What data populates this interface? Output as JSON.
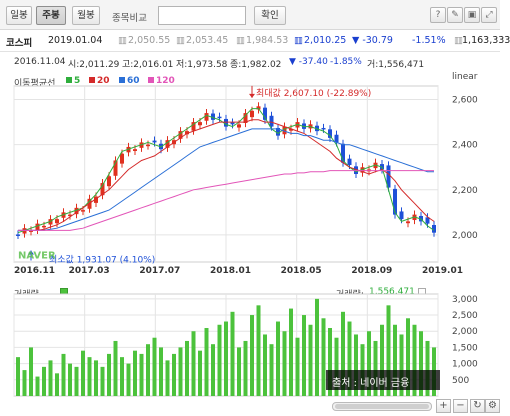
{
  "toolbar": {
    "period_buttons": [
      {
        "label": "일봉",
        "active": false
      },
      {
        "label": "주봉",
        "active": true
      },
      {
        "label": "월봉",
        "active": false
      }
    ],
    "compare_label": "종목비교",
    "compare_input_value": "",
    "confirm_label": "확인"
  },
  "quote": {
    "name": "코스피",
    "date": "2019.01.04",
    "open": "2,050.55",
    "high": "2,053.45",
    "low": "1,984.53",
    "close": "2,010.25",
    "change": "▼ -30.79",
    "change_pct": "-1.51%",
    "volume": "1,163,333"
  },
  "ohlc_header": {
    "start_date": "2016.11.04",
    "open": "시:2,011.29",
    "high": "고:2,016.01",
    "low": "저:1,973.58",
    "close": "종:1,982.02",
    "change": "▼ -37.40",
    "change_pct": "-1.85%",
    "volume": "거:1,556,471"
  },
  "scale_label": "linear",
  "ma_legend": {
    "title": "이동평균선",
    "items": [
      {
        "label": "5",
        "color": "#2fae3c"
      },
      {
        "label": "20",
        "color": "#d42a2a"
      },
      {
        "label": "60",
        "color": "#2a6fd6"
      },
      {
        "label": "120",
        "color": "#e255b8"
      }
    ]
  },
  "colors": {
    "up": "#e0301e",
    "down": "#1e50d8",
    "volume": "#4cc23c",
    "grid": "#e4e4e4"
  },
  "annotations": {
    "max_label": "최대값 2,607.10 (-22.89%)",
    "min_label": "최소값 1,931.07 (4.10%)"
  },
  "watermark": "NAVER",
  "volume_panel": {
    "title": "거래량",
    "current_label": "거래량:",
    "current_value": "1,556,471",
    "source": "출처 : 네이버 금융"
  },
  "controls": {
    "zoom_in": "+",
    "zoom_out": "−",
    "reset": "↻",
    "options": "⚙"
  },
  "chart_data": {
    "type": "line",
    "title": "",
    "xlabel": "",
    "ylabel": "",
    "x_ticks": [
      "2016.11",
      "2017.03",
      "2017.07",
      "2018.01",
      "2018.05",
      "2018.09",
      "2019.01"
    ],
    "price_ylim": [
      1880,
      2660
    ],
    "price_ticks": [
      "2,600",
      "2,400",
      "2,200",
      "2,000"
    ],
    "price_tick_values": [
      2600,
      2400,
      2200,
      2000
    ],
    "volume_ylim": [
      0,
      3150
    ],
    "volume_ticks": [
      "3,000",
      "2,500",
      "2,000",
      "1,500",
      "1,000",
      "500"
    ],
    "volume_tick_values": [
      3000,
      2500,
      2000,
      1500,
      1000,
      500
    ],
    "grid": true,
    "series": [
      {
        "name": "5",
        "values": [
          2010,
          2020,
          2030,
          2040,
          2050,
          2060,
          2080,
          2090,
          2100,
          2110,
          2120,
          2150,
          2180,
          2220,
          2270,
          2320,
          2370,
          2380,
          2390,
          2400,
          2410,
          2400,
          2390,
          2410,
          2430,
          2450,
          2470,
          2490,
          2510,
          2530,
          2520,
          2510,
          2490,
          2480,
          2500,
          2530,
          2560,
          2560,
          2520,
          2470,
          2450,
          2470,
          2480,
          2490,
          2480,
          2480,
          2470,
          2460,
          2440,
          2400,
          2330,
          2300,
          2280,
          2290,
          2300,
          2310,
          2300,
          2200,
          2100,
          2060,
          2070,
          2080,
          2070,
          2040,
          2020
        ]
      },
      {
        "name": "20",
        "values": [
          2020,
          2020,
          2020,
          2020,
          2025,
          2035,
          2045,
          2060,
          2080,
          2100,
          2120,
          2140,
          2160,
          2180,
          2200,
          2230,
          2260,
          2290,
          2310,
          2330,
          2340,
          2350,
          2370,
          2390,
          2410,
          2430,
          2450,
          2460,
          2470,
          2480,
          2490,
          2500,
          2500,
          2500,
          2500,
          2500,
          2510,
          2510,
          2500,
          2500,
          2490,
          2480,
          2470,
          2460,
          2450,
          2430,
          2410,
          2390,
          2370,
          2340,
          2320,
          2300,
          2290,
          2280,
          2270,
          2280,
          2290,
          2270,
          2240,
          2200,
          2170,
          2140,
          2110,
          2080,
          2060
        ]
      },
      {
        "name": "60",
        "values": [
          2020,
          2020,
          2020,
          2020,
          2020,
          2025,
          2030,
          2040,
          2050,
          2060,
          2070,
          2080,
          2090,
          2100,
          2110,
          2130,
          2150,
          2170,
          2190,
          2210,
          2230,
          2250,
          2270,
          2290,
          2310,
          2330,
          2350,
          2370,
          2390,
          2400,
          2410,
          2420,
          2430,
          2440,
          2450,
          2460,
          2470,
          2470,
          2470,
          2470,
          2470,
          2460,
          2450,
          2450,
          2440,
          2440,
          2430,
          2420,
          2420,
          2410,
          2400,
          2400,
          2390,
          2380,
          2370,
          2360,
          2350,
          2340,
          2330,
          2320,
          2310,
          2300,
          2290,
          2280,
          2280
        ]
      },
      {
        "name": "120",
        "values": [
          2020,
          2020,
          2020,
          2020,
          2020,
          2020,
          2020,
          2020,
          2020,
          2025,
          2030,
          2040,
          2050,
          2060,
          2070,
          2080,
          2090,
          2100,
          2110,
          2120,
          2130,
          2140,
          2150,
          2160,
          2170,
          2180,
          2190,
          2200,
          2205,
          2210,
          2215,
          2220,
          2225,
          2230,
          2235,
          2240,
          2245,
          2250,
          2255,
          2260,
          2265,
          2270,
          2270,
          2275,
          2275,
          2280,
          2280,
          2280,
          2285,
          2285,
          2285,
          2285,
          2285,
          2285,
          2285,
          2285,
          2285,
          2285,
          2285,
          2285,
          2285,
          2285,
          2285,
          2285,
          2285
        ]
      }
    ],
    "volume": [
      1200,
      800,
      1500,
      600,
      900,
      1100,
      700,
      1300,
      1000,
      900,
      1400,
      1200,
      1100,
      900,
      1300,
      1700,
      1200,
      1000,
      1400,
      1300,
      1600,
      1800,
      1500,
      1100,
      1300,
      1500,
      1700,
      2000,
      1400,
      2100,
      1600,
      2200,
      2300,
      2600,
      1500,
      1700,
      2500,
      2800,
      1900,
      1600,
      2300,
      2000,
      2700,
      1800,
      2500,
      2200,
      3000,
      2400,
      2100,
      1800,
      2600,
      2300,
      1900,
      1600,
      2000,
      1700,
      2200,
      2800,
      2200,
      1900,
      2400,
      2200,
      2000,
      1700,
      1500
    ]
  }
}
